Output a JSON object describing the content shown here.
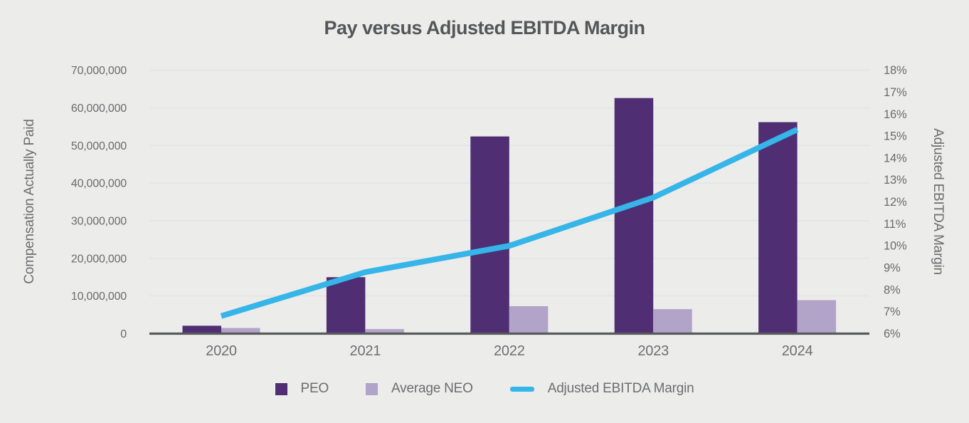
{
  "title": "Pay versus Adjusted EBITDA Margin",
  "axes": {
    "left": {
      "title": "Compensation Actually Paid",
      "ticks": [
        "0",
        "10,000,000",
        "20,000,000",
        "30,000,000",
        "40,000,000",
        "50,000,000",
        "60,000,000",
        "70,000,000"
      ]
    },
    "right": {
      "title": "Adjusted EBITDA Margin",
      "ticks": [
        "6%",
        "7%",
        "8%",
        "9%",
        "10%",
        "11%",
        "12%",
        "13%",
        "14%",
        "15%",
        "16%",
        "17%",
        "18%"
      ]
    },
    "x": {
      "categories": [
        "2020",
        "2021",
        "2022",
        "2023",
        "2024"
      ]
    }
  },
  "colors": {
    "background": "#ECECEA",
    "peo_bar": "#502E73",
    "neo_bar": "#B2A3C8",
    "ebitda_line": "#35B5E8",
    "gridline": "#E4E5E8",
    "axis_line": "#58595B",
    "title_text": "#55565A",
    "tick_text": "#6A6B6E"
  },
  "chart_data": {
    "type": "combo",
    "title": "Pay versus Adjusted EBITDA Margin",
    "categories": [
      "2020",
      "2021",
      "2022",
      "2023",
      "2024"
    ],
    "series": [
      {
        "name": "PEO",
        "type": "bar",
        "axis": "left",
        "color": "#502E73",
        "values": [
          2100000,
          15000000,
          52400000,
          62600000,
          56200000
        ]
      },
      {
        "name": "Average NEO",
        "type": "bar",
        "axis": "left",
        "color": "#B2A3C8",
        "values": [
          1500000,
          1200000,
          7300000,
          6500000,
          8900000
        ]
      },
      {
        "name": "Adjusted EBITDA Margin",
        "type": "line",
        "axis": "right",
        "color": "#35B5E8",
        "values": [
          6.8,
          8.8,
          10.0,
          12.2,
          15.3
        ]
      }
    ],
    "left_axis_label": "Compensation Actually Paid",
    "right_axis_label": "Adjusted EBITDA Margin",
    "left_ylim": [
      0,
      70000000
    ],
    "left_tick_step": 10000000,
    "right_ylim": [
      6,
      18
    ],
    "right_tick_step": 1,
    "grid": "horizontal",
    "legend_position": "bottom"
  }
}
